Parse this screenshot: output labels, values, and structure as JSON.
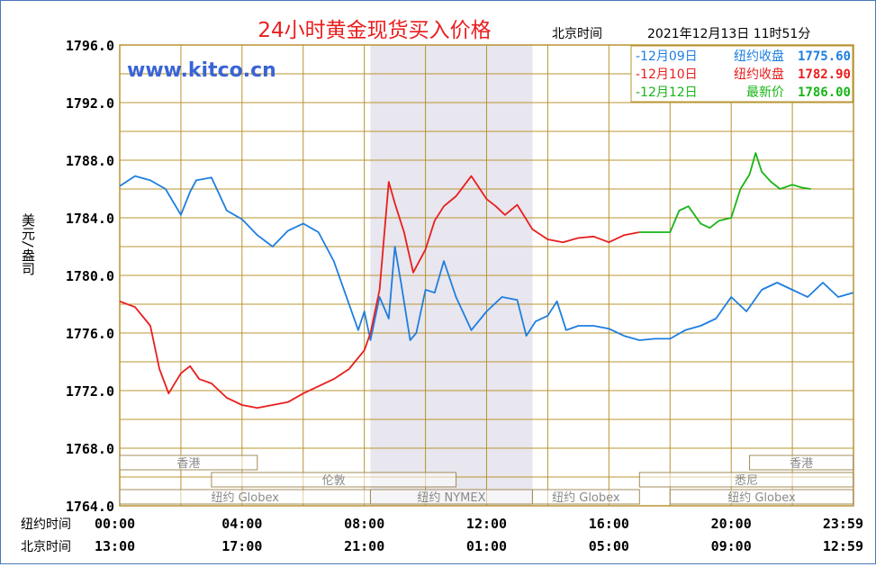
{
  "chart_data": {
    "type": "line",
    "title": "24小时黄金现货买入价格",
    "timezone_label": "北京时间",
    "timestamp": "2021年12月13日 11时51分",
    "watermark": "www.kitco.cn",
    "ylabel": "美元/盎司",
    "ylim": [
      1764,
      1796
    ],
    "yticks": [
      "1764.0",
      "1768.0",
      "1772.0",
      "1776.0",
      "1780.0",
      "1784.0",
      "1788.0",
      "1792.0",
      "1796.0"
    ],
    "x_row_label_ny": "纽约时间",
    "x_row_label_bj": "北京时间",
    "xticks_ny": [
      "00:00",
      "04:00",
      "08:00",
      "12:00",
      "16:00",
      "20:00",
      "23:59"
    ],
    "xticks_bj": [
      "13:00",
      "17:00",
      "21:00",
      "01:00",
      "05:00",
      "09:00",
      "12:59"
    ],
    "colors": {
      "dec09": "#1e7ee0",
      "dec10": "#e81e1e",
      "dec12": "#18b418",
      "grid": "#b89432",
      "shade": "#e8e6ee",
      "title": "#e81e1e",
      "watermark": "#3a64d6"
    },
    "legend": {
      "placement": "top-right",
      "items": [
        {
          "date": "12月09日",
          "label": "纽约收盘",
          "value": "1775.60",
          "color": "#1e7ee0"
        },
        {
          "date": "12月10日",
          "label": "纽约收盘",
          "value": "1782.90",
          "color": "#e81e1e"
        },
        {
          "date": "12月12日",
          "label": "最新价",
          "value": "1786.00",
          "color": "#18b418"
        }
      ]
    },
    "sessions": [
      {
        "name": "香港",
        "row": 0,
        "start": 0,
        "end": 4.5
      },
      {
        "name": "香港",
        "row": 0,
        "start": 20.6,
        "end": 23.99
      },
      {
        "name": "伦敦",
        "row": 1,
        "start": 3.0,
        "end": 11.0
      },
      {
        "name": "悉尼",
        "row": 1,
        "start": 17.0,
        "end": 23.99
      },
      {
        "name": "纽约 Globex",
        "row": 2,
        "start": 0,
        "end": 8.2
      },
      {
        "name": "纽约 NYMEX",
        "row": 2,
        "start": 8.2,
        "end": 13.5
      },
      {
        "name": "纽约 Globex",
        "row": 2,
        "start": 13.5,
        "end": 17.0
      },
      {
        "name": "纽约 Globex",
        "row": 2,
        "start": 18.0,
        "end": 23.99
      }
    ],
    "shaded_range": [
      8.2,
      13.5
    ],
    "series": [
      {
        "name": "12月09日",
        "color": "#1e7ee0",
        "x": [
          0,
          0.5,
          1,
          1.5,
          2,
          2.3,
          2.5,
          3,
          3.5,
          4,
          4.5,
          5,
          5.5,
          6,
          6.5,
          7,
          7.5,
          7.8,
          8,
          8.2,
          8.5,
          8.8,
          9,
          9.2,
          9.5,
          9.7,
          10,
          10.3,
          10.6,
          11,
          11.5,
          12,
          12.5,
          13,
          13.3,
          13.6,
          14,
          14.3,
          14.6,
          15,
          15.5,
          16,
          16.5,
          17,
          17.5,
          18,
          18.5,
          19,
          19.5,
          20,
          20.5,
          21,
          21.5,
          22,
          22.5,
          23,
          23.5,
          23.99
        ],
        "y": [
          1786.2,
          1786.9,
          1786.6,
          1786.0,
          1784.2,
          1785.8,
          1786.6,
          1786.8,
          1784.5,
          1783.9,
          1782.8,
          1782.0,
          1783.1,
          1783.6,
          1783.0,
          1781.0,
          1778.0,
          1776.2,
          1777.5,
          1775.5,
          1778.5,
          1777.0,
          1782.0,
          1779.5,
          1775.5,
          1776.0,
          1779.0,
          1778.8,
          1781.0,
          1778.5,
          1776.2,
          1777.5,
          1778.5,
          1778.3,
          1775.8,
          1776.8,
          1777.2,
          1778.2,
          1776.2,
          1776.5,
          1776.5,
          1776.3,
          1775.8,
          1775.5,
          1775.6,
          1775.6,
          1776.2,
          1776.5,
          1777.0,
          1778.5,
          1777.5,
          1779.0,
          1779.5,
          1779.0,
          1778.5,
          1779.5,
          1778.5,
          1778.8
        ]
      },
      {
        "name": "12月10日",
        "color": "#e81e1e",
        "x": [
          0,
          0.5,
          1,
          1.3,
          1.6,
          2,
          2.3,
          2.6,
          3,
          3.5,
          4,
          4.5,
          5,
          5.5,
          6,
          6.5,
          7,
          7.5,
          8,
          8.2,
          8.5,
          8.8,
          9,
          9.3,
          9.6,
          10,
          10.3,
          10.6,
          11,
          11.5,
          12,
          12.3,
          12.6,
          13,
          13.5,
          14,
          14.5,
          15,
          15.5,
          16,
          16.5,
          17
        ],
        "y": [
          1778.2,
          1777.8,
          1776.5,
          1773.5,
          1771.8,
          1773.2,
          1773.7,
          1772.8,
          1772.5,
          1771.5,
          1771.0,
          1770.8,
          1771.0,
          1771.2,
          1771.8,
          1772.3,
          1772.8,
          1773.5,
          1774.8,
          1776.0,
          1779.0,
          1786.5,
          1785.0,
          1783.0,
          1780.2,
          1781.8,
          1783.8,
          1784.8,
          1785.5,
          1786.9,
          1785.3,
          1784.8,
          1784.2,
          1784.9,
          1783.2,
          1782.5,
          1782.3,
          1782.6,
          1782.7,
          1782.3,
          1782.8,
          1783.0
        ]
      },
      {
        "name": "12月12日",
        "color": "#18b418",
        "x": [
          17,
          17.5,
          18,
          18.3,
          18.6,
          19,
          19.3,
          19.6,
          20,
          20.3,
          20.6,
          20.8,
          21,
          21.3,
          21.6,
          22,
          22.3,
          22.6
        ],
        "y": [
          1783.0,
          1783.0,
          1783.0,
          1784.5,
          1784.8,
          1783.6,
          1783.3,
          1783.8,
          1784.0,
          1786.0,
          1787.0,
          1788.5,
          1787.2,
          1786.5,
          1786.0,
          1786.3,
          1786.1,
          1786.0
        ]
      }
    ]
  }
}
